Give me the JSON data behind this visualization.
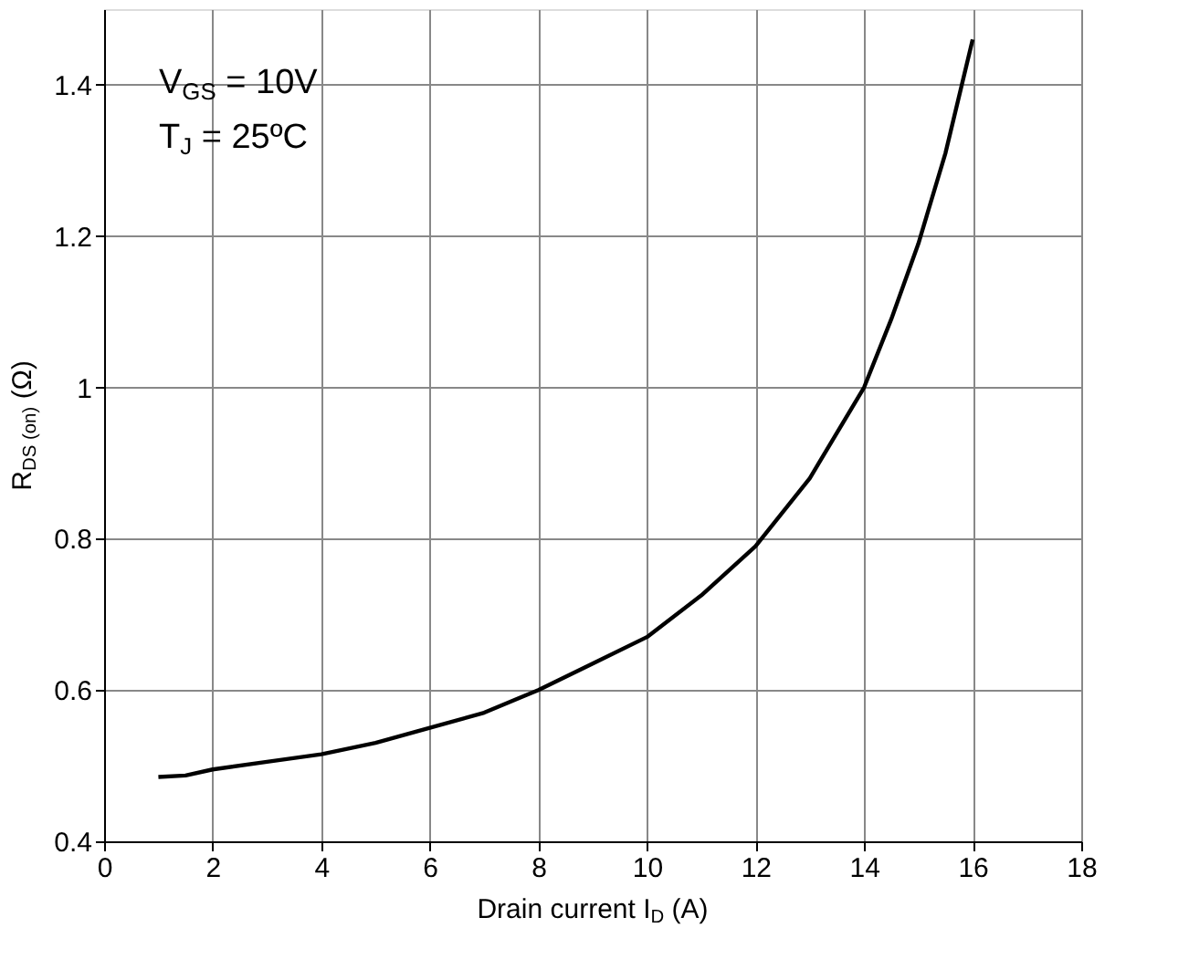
{
  "chart_data": {
    "type": "line",
    "xlabel": "Drain current I$_{D}$ (A)",
    "ylabel": "R$_{DS (on)}$ (Ω)",
    "annotations": [
      "V$_{GS}$ = 10V",
      "T$_{J}$ = 25ºC"
    ],
    "x": [
      1,
      1.5,
      2,
      3,
      4,
      5,
      6,
      7,
      8,
      9,
      10,
      11,
      12,
      13,
      14,
      14.5,
      15,
      15.5,
      16
    ],
    "series": [
      {
        "color": "#000000",
        "values": [
          0.485,
          0.487,
          0.495,
          0.505,
          0.515,
          0.53,
          0.55,
          0.57,
          0.6,
          0.635,
          0.67,
          0.725,
          0.79,
          0.88,
          1.0,
          1.09,
          1.19,
          1.31,
          1.46
        ]
      }
    ],
    "xlim": [
      0,
      18
    ],
    "xticks": [
      0,
      2,
      4,
      6,
      8,
      10,
      12,
      14,
      16,
      18
    ],
    "ylim": [
      0.4,
      1.5
    ],
    "yticks": [
      0.4,
      0.6,
      0.8,
      1,
      1.2,
      1.4
    ],
    "grid": true,
    "marker": "none",
    "line_style": "solid"
  }
}
